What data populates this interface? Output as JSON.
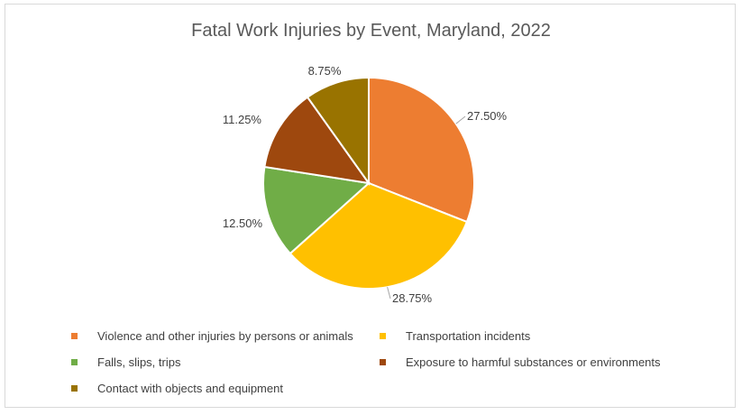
{
  "chart_data": {
    "type": "pie",
    "title": "Fatal Work Injuries by Event, Maryland, 2022",
    "series": [
      {
        "name": "Violence and other injuries by persons or animals",
        "value": 27.5,
        "label": "27.50%",
        "color": "#ED7D31"
      },
      {
        "name": "Transportation incidents",
        "value": 28.75,
        "label": "28.75%",
        "color": "#FFC000"
      },
      {
        "name": "Falls, slips, trips",
        "value": 12.5,
        "label": "12.50%",
        "color": "#70AD47"
      },
      {
        "name": "Exposure to harmful substances or environments",
        "value": 11.25,
        "label": "11.25%",
        "color": "#9E480E"
      },
      {
        "name": "Contact with objects and equipment",
        "value": 8.75,
        "label": "8.75%",
        "color": "#997300"
      }
    ],
    "legend_position": "bottom"
  }
}
